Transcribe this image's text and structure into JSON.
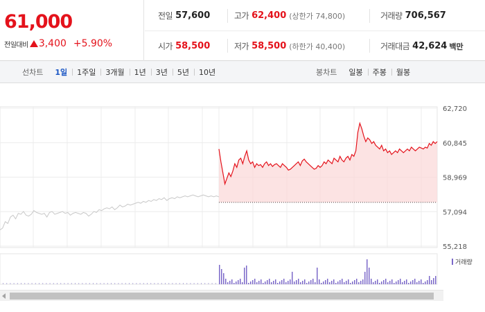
{
  "quote": {
    "price": "61,000",
    "change_label": "전일대비",
    "change_amount": "3,400",
    "change_percent": "+5.90%",
    "prev_close": {
      "label": "전일",
      "value": "57,600"
    },
    "high": {
      "label": "고가",
      "value": "62,400",
      "sub": "(상한가 74,800)"
    },
    "volume": {
      "label": "거래량",
      "value": "706,567"
    },
    "open": {
      "label": "시가",
      "value": "58,500"
    },
    "low": {
      "label": "저가",
      "value": "58,500",
      "sub": "(하한가 40,400)"
    },
    "trade_value": {
      "label": "거래대금",
      "value": "42,624",
      "unit": "백만"
    }
  },
  "toolbar": {
    "line_label": "선차트",
    "line_options": [
      "1일",
      "1주일",
      "3개월",
      "1년",
      "3년",
      "5년",
      "10년"
    ],
    "line_active": 0,
    "candle_label": "봉차트",
    "candle_options": [
      "일봉",
      "주봉",
      "월봉"
    ]
  },
  "colors": {
    "up": "#e4121b",
    "prev_day": "#c8c8c8",
    "volume": "#7b68c9",
    "active": "#1a56c4"
  },
  "chart_data": {
    "type": "line",
    "y_ticks": [
      "62,720",
      "60,845",
      "58,969",
      "57,094",
      "55,218"
    ],
    "ylim": [
      55218,
      62720
    ],
    "prev_close_line": 57600,
    "volume_legend": "거래량",
    "series": [
      {
        "values_prev_day": [
          56100,
          56200,
          56550,
          56450,
          56800,
          56900,
          56700,
          57000,
          56950,
          57100,
          56900,
          56850,
          56950,
          57150,
          57050,
          57000,
          56950,
          57000,
          56800,
          57050,
          57100,
          56950,
          57000,
          57050,
          57100,
          57000,
          57050,
          56900,
          57000,
          57050,
          57000,
          56950,
          57050,
          57000,
          56850,
          56950,
          57100,
          57050,
          57200,
          57150,
          57250,
          57300,
          57250,
          57350,
          57200,
          57300,
          57450,
          57350,
          57400,
          57500,
          57450,
          57500,
          57550,
          57600,
          57550,
          57650,
          57600,
          57700,
          57650,
          57750,
          57700,
          57800,
          57750,
          57850,
          57700,
          57800,
          57850,
          57800,
          57900,
          57850,
          57900,
          57950,
          57900,
          57950,
          58000,
          57950,
          57900,
          57950,
          58000,
          57950,
          57900,
          57950,
          57900,
          57950,
          57900
        ]
      },
      {
        "values_today": [
          60500,
          59800,
          59200,
          58600,
          58900,
          59200,
          59000,
          59300,
          59700,
          59500,
          59900,
          60000,
          59700,
          60100,
          60400,
          59900,
          59700,
          59800,
          59500,
          59700,
          59600,
          59650,
          59500,
          59700,
          59800,
          59600,
          59700,
          59550,
          59650,
          59700,
          59600,
          59500,
          59700,
          59600,
          59500,
          59350,
          59400,
          59500,
          59600,
          59700,
          59800,
          59600,
          59850,
          59950,
          59800,
          59700,
          59600,
          59500,
          59400,
          59450,
          59600,
          59500,
          59600,
          59800,
          59700,
          59900,
          59800,
          59700,
          60000,
          59900,
          59800,
          60100,
          59900,
          59800,
          60000,
          60100,
          59900,
          60200,
          60100,
          60400,
          61400,
          61900,
          61600,
          61200,
          60900,
          61100,
          61000,
          60800,
          60900,
          60700,
          60600,
          60500,
          60700,
          60400,
          60500,
          60300,
          60400,
          60200,
          60300,
          60400,
          60300,
          60500,
          60400,
          60300,
          60400,
          60500,
          60400,
          60600,
          60500,
          60400,
          60500,
          60600,
          60550,
          60500,
          60600,
          60550,
          60800,
          60700,
          60900,
          60800,
          60900
        ]
      }
    ]
  }
}
